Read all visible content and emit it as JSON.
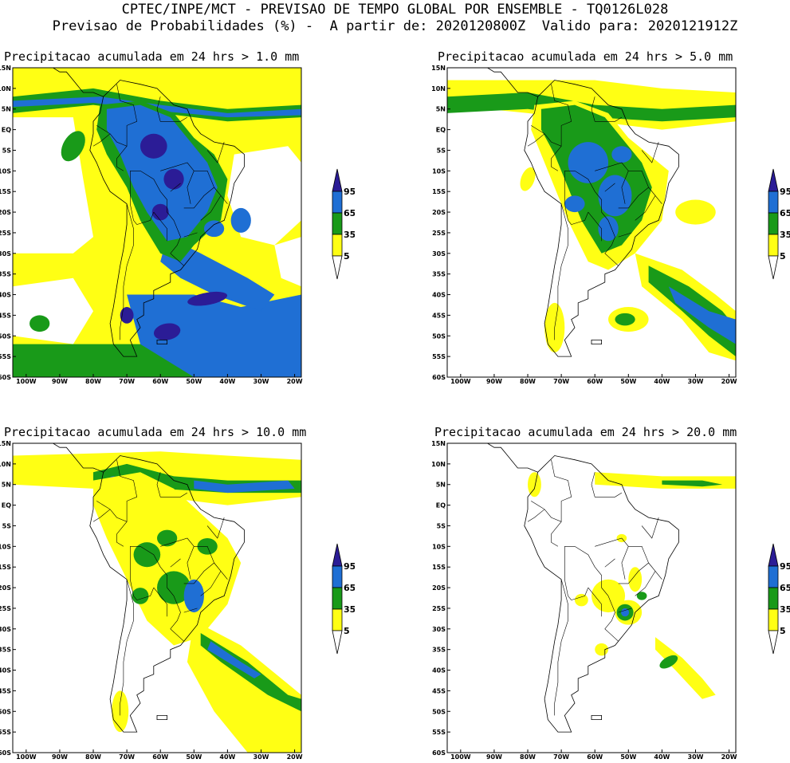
{
  "header": {
    "line1": "CPTEC/INPE/MCT - PREVISAO DE TEMPO GLOBAL POR ENSEMBLE - TQ0126L028",
    "line2": "Previsao de Probabilidades (%) -  A partir de: 2020120800Z  Valido para: 2020121912Z"
  },
  "axes": {
    "lat_labels": [
      "15N",
      "10N",
      "5N",
      "EQ",
      "5S",
      "10S",
      "15S",
      "20S",
      "25S",
      "30S",
      "35S",
      "40S",
      "45S",
      "50S",
      "55S",
      "60S"
    ],
    "lon_labels": [
      "100W",
      "90W",
      "80W",
      "70W",
      "60W",
      "50W",
      "40W",
      "30W",
      "20W"
    ]
  },
  "legend": {
    "labels": [
      "95",
      "65",
      "35",
      "5"
    ],
    "colors": [
      "#2b1c96",
      "#1f6fd4",
      "#199a19",
      "#ffff14"
    ]
  },
  "panels": [
    {
      "title": "Precipitacao acumulada em 24 hrs > 1.0 mm",
      "threshold_mm": 1.0
    },
    {
      "title": "Precipitacao acumulada em 24 hrs > 5.0 mm",
      "threshold_mm": 5.0
    },
    {
      "title": "Precipitacao acumulada em 24 hrs > 10.0 mm",
      "threshold_mm": 10.0
    },
    {
      "title": "Precipitacao acumulada em 24 hrs > 20.0 mm",
      "threshold_mm": 20.0
    }
  ],
  "colors": {
    "yellow": "#ffff14",
    "green": "#199a19",
    "blue": "#1f6fd4",
    "darkblue": "#2b1c96"
  }
}
